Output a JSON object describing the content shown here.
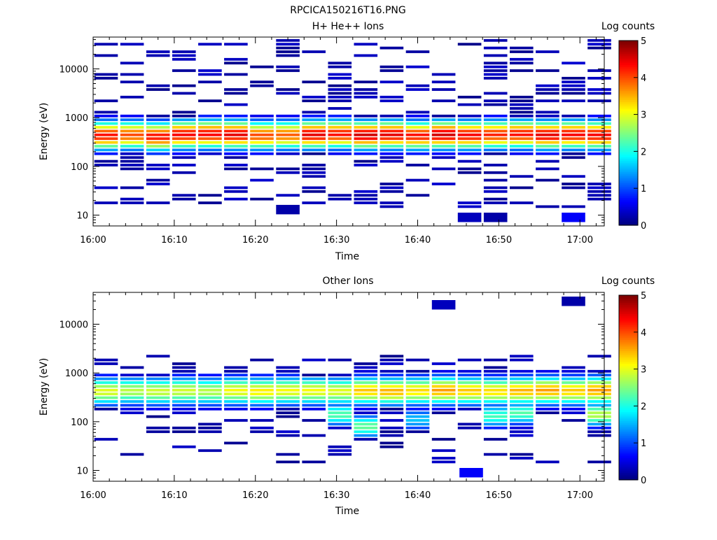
{
  "figure_title": "RPCICA150216T16.PNG",
  "chart_data": [
    {
      "type": "heatmap",
      "title": "H+ He++ Ions",
      "xlabel": "Time",
      "ylabel": "Energy (eV)",
      "x_ticks": [
        "16:00",
        "16:10",
        "16:20",
        "16:30",
        "16:40",
        "16:50",
        "17:00"
      ],
      "x_range": [
        "16:00",
        "17:03"
      ],
      "y_scale": "log",
      "y_ticks": [
        "10",
        "100",
        "1000",
        "10000"
      ],
      "y_range": [
        6,
        45000
      ],
      "colorbar": {
        "label": "Log counts",
        "range": [
          0,
          5
        ],
        "ticks": [
          "0",
          "1",
          "2",
          "3",
          "4",
          "5"
        ],
        "colormap": "jet"
      },
      "time_bins_min": [
        0,
        3.2,
        6.4,
        9.6,
        12.8,
        16,
        19.2,
        22.4,
        25.6,
        28.8,
        32,
        35.2,
        38.4,
        41.6,
        44.8,
        48,
        51.2,
        54.4,
        57.6,
        60.8
      ],
      "time_bin_width_min": 3.2,
      "values_description": "log10 counts per energy bin; dominant population ~200-1000 eV",
      "spectra": [
        {
          "center_eV": 430,
          "peak": 4.3
        },
        {
          "center_eV": 440,
          "peak": 4.0
        },
        {
          "center_eV": 410,
          "peak": 4.3
        },
        {
          "center_eV": 450,
          "peak": 4.4
        },
        {
          "center_eV": 460,
          "peak": 4.4
        },
        {
          "center_eV": 450,
          "peak": 4.5
        },
        {
          "center_eV": 430,
          "peak": 4.0
        },
        {
          "center_eV": 440,
          "peak": 3.9
        },
        {
          "center_eV": 450,
          "peak": 4.5
        },
        {
          "center_eV": 460,
          "peak": 4.3
        },
        {
          "center_eV": 440,
          "peak": 4.6
        },
        {
          "center_eV": 450,
          "peak": 4.5
        },
        {
          "center_eV": 430,
          "peak": 4.3
        },
        {
          "center_eV": 450,
          "peak": 4.6
        },
        {
          "center_eV": 440,
          "peak": 4.4
        },
        {
          "center_eV": 450,
          "peak": 4.2
        },
        {
          "center_eV": 460,
          "peak": 4.3
        },
        {
          "center_eV": 440,
          "peak": 4.5
        },
        {
          "center_eV": 450,
          "peak": 4.4
        },
        {
          "center_eV": 440,
          "peak": 4.4
        }
      ],
      "isolated_bins": [
        {
          "time_min": 22.4,
          "energy_eV": 13,
          "value": 0.2
        },
        {
          "time_min": 44.8,
          "energy_eV": 9,
          "value": 0.3
        },
        {
          "time_min": 48.0,
          "energy_eV": 9,
          "value": 0.2
        },
        {
          "time_min": 57.6,
          "energy_eV": 9,
          "value": 0.6
        }
      ]
    },
    {
      "type": "heatmap",
      "title": "Other Ions",
      "xlabel": "Time",
      "ylabel": "Energy (eV)",
      "x_ticks": [
        "16:00",
        "16:10",
        "16:20",
        "16:30",
        "16:40",
        "16:50",
        "17:00"
      ],
      "x_range": [
        "16:00",
        "17:03"
      ],
      "y_scale": "log",
      "y_ticks": [
        "10",
        "100",
        "1000",
        "10000"
      ],
      "y_range": [
        6,
        45000
      ],
      "colorbar": {
        "label": "Log counts",
        "range": [
          0,
          5
        ],
        "ticks": [
          "0",
          "1",
          "2",
          "3",
          "4",
          "5"
        ],
        "colormap": "jet"
      },
      "time_bins_min": [
        0,
        3.2,
        6.4,
        9.6,
        12.8,
        16,
        19.2,
        22.4,
        25.6,
        28.8,
        32,
        35.2,
        38.4,
        41.6,
        44.8,
        48,
        51.2,
        54.4,
        57.6,
        60.8
      ],
      "time_bin_width_min": 3.2,
      "values_description": "log10 counts per energy bin; dominant population ~250-700 eV, secondary ~50-200 eV after 16:30",
      "spectra": [
        {
          "center_eV": 420,
          "peak": 3.0
        },
        {
          "center_eV": 430,
          "peak": 2.8
        },
        {
          "center_eV": 420,
          "peak": 2.9
        },
        {
          "center_eV": 430,
          "peak": 2.9
        },
        {
          "center_eV": 420,
          "peak": 2.8
        },
        {
          "center_eV": 430,
          "peak": 3.1
        },
        {
          "center_eV": 420,
          "peak": 3.2
        },
        {
          "center_eV": 430,
          "peak": 3.1
        },
        {
          "center_eV": 430,
          "peak": 3.1
        },
        {
          "center_eV": 420,
          "peak": 3.0
        },
        {
          "center_eV": 430,
          "peak": 3.4
        },
        {
          "center_eV": 420,
          "peak": 3.5
        },
        {
          "center_eV": 430,
          "peak": 3.3
        },
        {
          "center_eV": 440,
          "peak": 3.6
        },
        {
          "center_eV": 430,
          "peak": 3.4
        },
        {
          "center_eV": 420,
          "peak": 3.3
        },
        {
          "center_eV": 430,
          "peak": 3.5
        },
        {
          "center_eV": 440,
          "peak": 3.6
        },
        {
          "center_eV": 430,
          "peak": 3.4
        },
        {
          "center_eV": 440,
          "peak": 3.6
        }
      ],
      "secondary_population": [
        {
          "time_min": 28.8,
          "center_eV": 140,
          "peak": 2.3
        },
        {
          "time_min": 32.0,
          "center_eV": 80,
          "peak": 2.4
        },
        {
          "time_min": 38.4,
          "center_eV": 110,
          "peak": 1.6
        },
        {
          "time_min": 48.0,
          "center_eV": 130,
          "peak": 2.2
        },
        {
          "time_min": 51.2,
          "center_eV": 150,
          "peak": 2.3
        },
        {
          "time_min": 60.8,
          "center_eV": 140,
          "peak": 2.8
        }
      ],
      "isolated_bins": [
        {
          "time_min": 41.6,
          "energy_eV": 25000,
          "value": 0.3
        },
        {
          "time_min": 57.6,
          "energy_eV": 29500,
          "value": 0.2
        },
        {
          "time_min": 45.0,
          "energy_eV": 9,
          "value": 0.6
        }
      ]
    }
  ]
}
